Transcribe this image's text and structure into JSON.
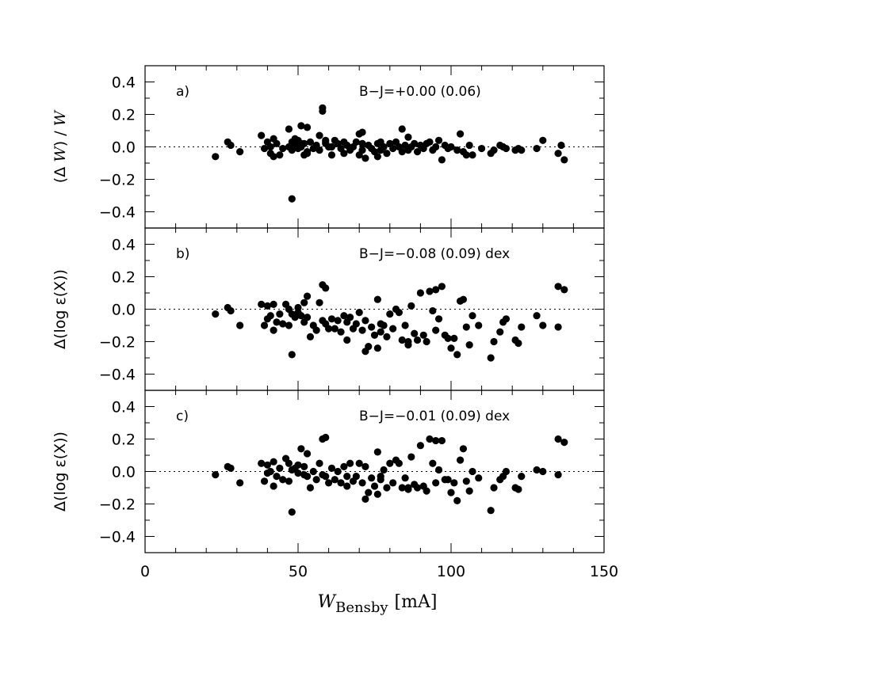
{
  "chart_data": [
    {
      "type": "scatter",
      "panel_label": "a)",
      "annotation": "B−J=+0.00  (0.06)",
      "ylabel": "(Δ W) / W",
      "ylabel_prefix": "(Δ ",
      "ylabel_var": "W",
      "ylabel_mid": ") / ",
      "ylabel_var2": "W",
      "xlim": [
        0,
        150
      ],
      "ylim": [
        -0.5,
        0.5
      ],
      "yticks": [
        -0.4,
        -0.2,
        0.0,
        0.2,
        0.4
      ],
      "ytick_labels": [
        "−0.4",
        "−0.2",
        "0.0",
        "0.2",
        "0.4"
      ],
      "reference_line": 0.0,
      "x": [
        23,
        27,
        28,
        31,
        38,
        39,
        40,
        41,
        41,
        42,
        42,
        43,
        44,
        45,
        47,
        47,
        48,
        48,
        49,
        49,
        50,
        50,
        51,
        51,
        52,
        52,
        53,
        53,
        54,
        55,
        56,
        57,
        57,
        58,
        58,
        59,
        59,
        60,
        61,
        62,
        63,
        64,
        65,
        65,
        66,
        67,
        68,
        69,
        70,
        70,
        71,
        71,
        72,
        73,
        74,
        75,
        76,
        76,
        77,
        77,
        78,
        79,
        80,
        81,
        82,
        83,
        84,
        85,
        86,
        86,
        87,
        88,
        89,
        90,
        91,
        92,
        93,
        94,
        95,
        96,
        97,
        98,
        99,
        100,
        102,
        103,
        104,
        105,
        106,
        107,
        110,
        113,
        114,
        116,
        117,
        118,
        121,
        122,
        123,
        128,
        130,
        135,
        136,
        137,
        48,
        51,
        53,
        59,
        61,
        71,
        84
      ],
      "y": [
        -0.06,
        0.03,
        0.01,
        -0.03,
        0.07,
        -0.01,
        0.03,
        0.0,
        -0.04,
        0.05,
        -0.06,
        0.02,
        -0.05,
        -0.01,
        0.11,
        0.0,
        0.03,
        -0.02,
        0.05,
        0.01,
        -0.01,
        0.04,
        0.13,
        0.0,
        -0.05,
        0.02,
        0.12,
        -0.03,
        0.03,
        -0.01,
        0.01,
        0.07,
        -0.02,
        0.22,
        0.24,
        0.04,
        0.02,
        0.0,
        -0.05,
        0.04,
        0.02,
        -0.01,
        0.03,
        -0.04,
        0.01,
        -0.02,
        0.0,
        0.03,
        -0.05,
        0.08,
        0.02,
        -0.02,
        -0.07,
        0.01,
        -0.01,
        -0.03,
        0.02,
        -0.06,
        -0.02,
        0.03,
        0.0,
        -0.04,
        0.02,
        -0.01,
        0.03,
        0.0,
        -0.03,
        0.01,
        -0.02,
        0.06,
        0.0,
        0.02,
        -0.03,
        0.01,
        -0.01,
        0.02,
        0.03,
        -0.02,
        0.0,
        0.04,
        -0.08,
        0.01,
        -0.01,
        0.0,
        -0.02,
        0.08,
        -0.03,
        -0.05,
        0.01,
        -0.05,
        -0.01,
        -0.04,
        -0.02,
        0.01,
        0.0,
        -0.01,
        -0.02,
        -0.01,
        -0.02,
        -0.01,
        0.04,
        -0.04,
        0.01,
        -0.08,
        -0.32,
        0.02,
        -0.04,
        0.03,
        0.0,
        0.09,
        0.11
      ]
    },
    {
      "type": "scatter",
      "panel_label": "b)",
      "annotation": "B−J=−0.08  (0.09)  dex",
      "ylabel": "Δ(log ε(X))",
      "xlim": [
        0,
        150
      ],
      "ylim": [
        -0.5,
        0.5
      ],
      "yticks": [
        -0.4,
        -0.2,
        0.0,
        0.2,
        0.4
      ],
      "ytick_labels": [
        "−0.4",
        "−0.2",
        "0.0",
        "0.2",
        "0.4"
      ],
      "reference_line": 0.0,
      "x": [
        23,
        27,
        28,
        31,
        38,
        39,
        40,
        40,
        41,
        42,
        42,
        43,
        44,
        45,
        46,
        47,
        47,
        48,
        48,
        49,
        50,
        50,
        51,
        52,
        52,
        53,
        53,
        54,
        55,
        56,
        57,
        58,
        58,
        59,
        59,
        60,
        61,
        62,
        63,
        64,
        65,
        66,
        66,
        67,
        68,
        69,
        70,
        71,
        72,
        72,
        73,
        74,
        75,
        76,
        76,
        77,
        77,
        78,
        79,
        80,
        81,
        82,
        83,
        84,
        85,
        86,
        86,
        87,
        88,
        89,
        90,
        91,
        92,
        93,
        94,
        95,
        95,
        96,
        97,
        98,
        99,
        100,
        101,
        102,
        103,
        104,
        105,
        106,
        107,
        109,
        113,
        114,
        116,
        117,
        118,
        121,
        122,
        123,
        128,
        130,
        135,
        135,
        137
      ],
      "y": [
        -0.03,
        0.01,
        -0.01,
        -0.1,
        0.03,
        -0.1,
        0.02,
        -0.06,
        -0.04,
        0.03,
        -0.13,
        -0.08,
        -0.03,
        -0.09,
        0.03,
        -0.1,
        0.0,
        -0.03,
        -0.28,
        -0.05,
        -0.02,
        0.01,
        -0.04,
        -0.08,
        0.04,
        0.08,
        -0.05,
        -0.17,
        -0.1,
        -0.13,
        0.04,
        0.15,
        -0.07,
        0.13,
        -0.09,
        -0.12,
        -0.06,
        -0.12,
        -0.07,
        -0.14,
        -0.04,
        -0.19,
        -0.08,
        -0.05,
        -0.12,
        -0.09,
        -0.02,
        -0.13,
        -0.26,
        -0.07,
        -0.23,
        -0.11,
        -0.16,
        -0.24,
        0.06,
        -0.09,
        -0.14,
        -0.1,
        -0.17,
        -0.03,
        -0.12,
        0.0,
        -0.02,
        -0.19,
        -0.1,
        -0.2,
        -0.22,
        0.02,
        -0.15,
        -0.19,
        0.1,
        -0.16,
        -0.2,
        0.11,
        -0.01,
        -0.13,
        0.12,
        -0.06,
        0.14,
        -0.16,
        -0.18,
        -0.24,
        -0.18,
        -0.28,
        0.05,
        0.06,
        -0.11,
        -0.22,
        -0.04,
        -0.1,
        -0.3,
        -0.2,
        -0.14,
        -0.08,
        -0.06,
        -0.19,
        -0.21,
        -0.11,
        -0.04,
        -0.1,
        0.14,
        -0.11,
        0.12
      ]
    },
    {
      "type": "scatter",
      "panel_label": "c)",
      "annotation": "B−J=−0.01  (0.09)  dex",
      "ylabel": "Δ(log ε(X))",
      "xlabel": "W_Bensby [mA]",
      "xlabel_var": "W",
      "xlabel_sub": "Bensby",
      "xlabel_unit": "[mA]",
      "xlim": [
        0,
        150
      ],
      "xticks": [
        0,
        50,
        100,
        150
      ],
      "xtick_labels": [
        "0",
        "50",
        "100",
        "150"
      ],
      "ylim": [
        -0.5,
        0.5
      ],
      "yticks": [
        -0.4,
        -0.2,
        0.0,
        0.2,
        0.4
      ],
      "ytick_labels": [
        "−0.4",
        "−0.2",
        "0.0",
        "0.2",
        "0.4"
      ],
      "reference_line": 0.0,
      "x": [
        23,
        27,
        28,
        31,
        38,
        39,
        40,
        40,
        41,
        42,
        42,
        43,
        44,
        45,
        46,
        47,
        47,
        48,
        48,
        49,
        50,
        50,
        51,
        52,
        52,
        53,
        53,
        54,
        55,
        56,
        57,
        58,
        58,
        59,
        59,
        60,
        61,
        62,
        63,
        64,
        65,
        66,
        66,
        67,
        68,
        69,
        70,
        71,
        72,
        72,
        73,
        74,
        75,
        76,
        76,
        77,
        77,
        78,
        79,
        80,
        81,
        82,
        83,
        84,
        85,
        86,
        86,
        87,
        88,
        89,
        90,
        91,
        92,
        93,
        94,
        95,
        95,
        96,
        97,
        98,
        99,
        100,
        101,
        102,
        103,
        104,
        105,
        106,
        107,
        109,
        113,
        114,
        116,
        117,
        118,
        121,
        122,
        123,
        128,
        130,
        135,
        135,
        137
      ],
      "y": [
        -0.02,
        0.03,
        0.02,
        -0.07,
        0.05,
        -0.06,
        0.04,
        -0.01,
        0.0,
        0.06,
        -0.09,
        -0.03,
        0.02,
        -0.05,
        0.08,
        -0.06,
        0.05,
        0.01,
        -0.25,
        0.02,
        0.04,
        -0.01,
        0.14,
        -0.02,
        0.03,
        0.11,
        -0.03,
        -0.1,
        0.0,
        -0.05,
        0.05,
        0.2,
        -0.02,
        0.21,
        -0.03,
        -0.07,
        0.02,
        -0.05,
        0.0,
        -0.07,
        0.03,
        -0.09,
        -0.03,
        0.05,
        -0.06,
        -0.03,
        0.05,
        -0.07,
        -0.17,
        0.03,
        -0.13,
        -0.04,
        -0.09,
        -0.14,
        0.12,
        -0.03,
        -0.05,
        0.01,
        -0.1,
        0.05,
        -0.07,
        0.07,
        0.05,
        -0.1,
        -0.04,
        -0.1,
        -0.11,
        0.09,
        -0.08,
        -0.1,
        0.16,
        -0.09,
        -0.12,
        0.2,
        0.05,
        -0.07,
        0.19,
        0.01,
        0.19,
        -0.05,
        -0.05,
        -0.13,
        -0.07,
        -0.18,
        0.07,
        0.14,
        -0.06,
        -0.12,
        0.0,
        -0.04,
        -0.24,
        -0.1,
        -0.05,
        -0.03,
        0.0,
        -0.1,
        -0.11,
        -0.03,
        0.01,
        0.0,
        0.2,
        -0.02,
        0.18
      ]
    }
  ]
}
